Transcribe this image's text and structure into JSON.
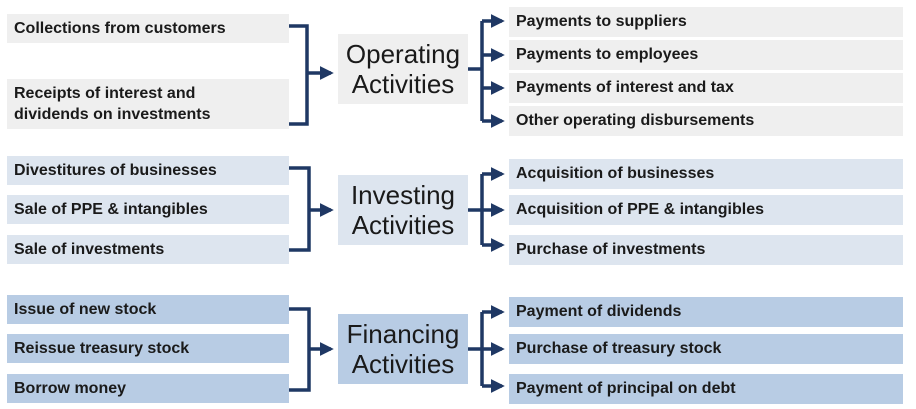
{
  "operating": {
    "inflows": [
      "Collections from customers",
      "Receipts of interest and dividends on investments"
    ],
    "title_line1": "Operating",
    "title_line2": "Activities",
    "outflows": [
      "Payments to suppliers",
      "Payments to employees",
      "Payments of interest and tax",
      "Other operating disbursements"
    ]
  },
  "investing": {
    "inflows": [
      "Divestitures of businesses",
      "Sale of PPE & intangibles",
      "Sale of investments"
    ],
    "title_line1": "Investing",
    "title_line2": "Activities",
    "outflows": [
      "Acquisition of businesses",
      "Acquisition of PPE & intangibles",
      "Purchase of investments"
    ]
  },
  "financing": {
    "inflows": [
      "Issue of new stock",
      "Reissue treasury stock",
      "Borrow money"
    ],
    "title_line1": "Financing",
    "title_line2": "Activities",
    "outflows": [
      "Payment of dividends",
      "Purchase of treasury stock",
      "Payment of principal on debt"
    ]
  },
  "colors": {
    "operating_fill": "#efefef",
    "investing_fill": "#dde5ef",
    "financing_fill": "#b8cce4",
    "connector": "#1f3864"
  }
}
